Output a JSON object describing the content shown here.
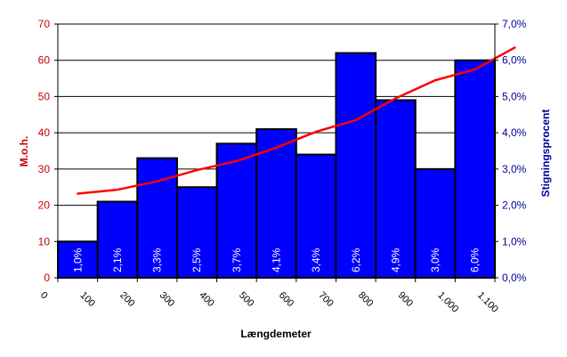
{
  "chart_data": {
    "type": "bar",
    "xlabel": "Længdemeter",
    "ylabel": "M.o.h.",
    "y2label": "Stigningsprocent",
    "x_ticks": [
      "0",
      "100",
      "200",
      "300",
      "400",
      "500",
      "600",
      "700",
      "800",
      "900",
      "1.000",
      "1.100"
    ],
    "xlim": [
      0,
      1100
    ],
    "ylim": [
      0,
      70
    ],
    "y2lim": [
      0,
      0.07
    ],
    "y_ticks": [
      "0",
      "10",
      "20",
      "30",
      "40",
      "50",
      "60",
      "70"
    ],
    "y2_ticks": [
      "0,0%",
      "1,0%",
      "2,0%",
      "3,0%",
      "4,0%",
      "5,0%",
      "6,0%",
      "7,0%"
    ],
    "grid": true,
    "series": [
      {
        "name": "Stigningsprocent",
        "kind": "bar",
        "axis": "right",
        "color": "#0000ff",
        "x_start": [
          0,
          100,
          200,
          300,
          400,
          500,
          600,
          700,
          800,
          900,
          1000
        ],
        "values": [
          0.01,
          0.021,
          0.033,
          0.025,
          0.037,
          0.041,
          0.034,
          0.062,
          0.049,
          0.03,
          0.06
        ],
        "labels": [
          "1,0%",
          "2,1%",
          "3,3%",
          "2,5%",
          "3,7%",
          "4,1%",
          "3,4%",
          "6,2%",
          "4,9%",
          "3,0%",
          "6,0%"
        ]
      },
      {
        "name": "M.o.h.",
        "kind": "line",
        "axis": "left",
        "color": "#ff0000",
        "x": [
          50,
          150,
          250,
          350,
          450,
          550,
          650,
          750,
          850,
          950,
          1050,
          1150
        ],
        "values": [
          23.2,
          24.3,
          26.6,
          29.7,
          32.2,
          35.9,
          40.3,
          43.5,
          49.5,
          54.5,
          57.5,
          63.5
        ]
      }
    ]
  }
}
